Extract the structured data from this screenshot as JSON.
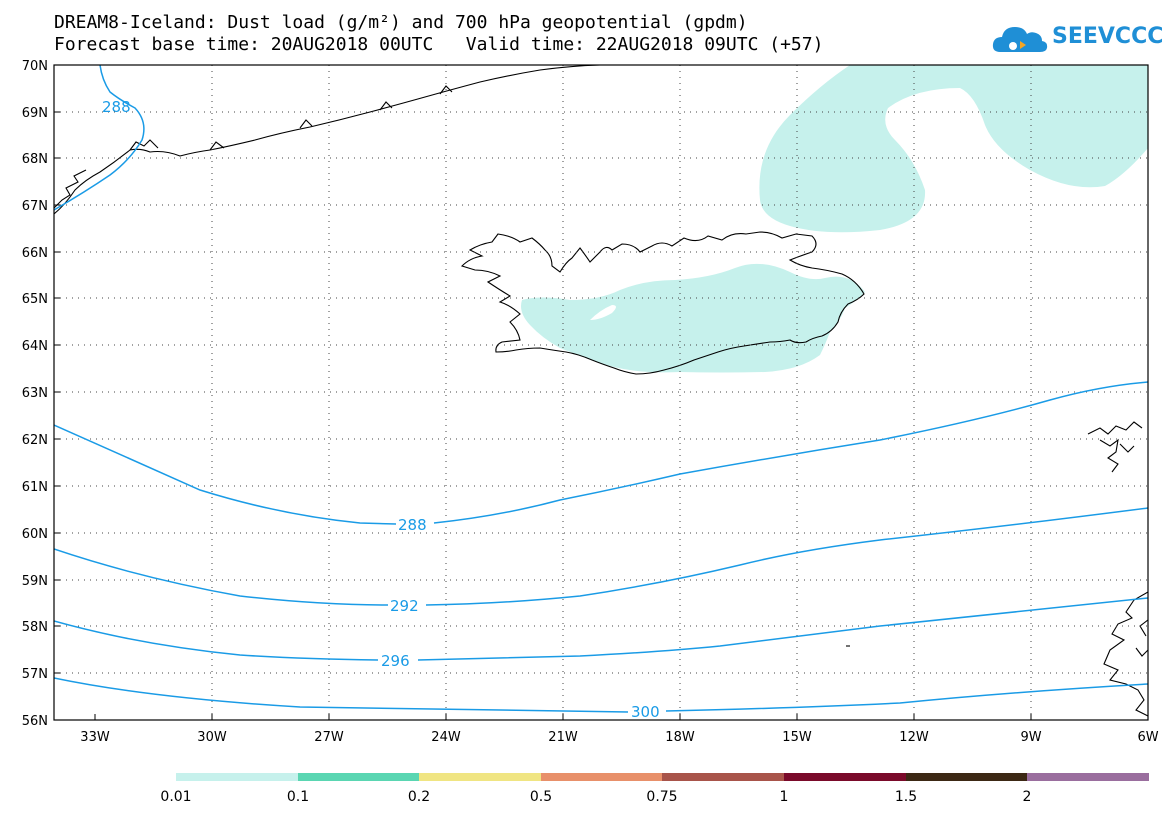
{
  "title": {
    "line1": "DREAM8-Iceland: Dust load (g/m²) and 700 hPa geopotential (gpdm)",
    "line2": "Forecast base time: 20AUG2018 00UTC   Valid time: 22AUG2018 09UTC (+57)"
  },
  "logo": {
    "text": "SEEVCCC",
    "icon": "cloud-icon",
    "color": "#1f8fd6"
  },
  "axes": {
    "lat_labels": [
      "70N",
      "69N",
      "68N",
      "67N",
      "66N",
      "65N",
      "64N",
      "63N",
      "62N",
      "61N",
      "60N",
      "59N",
      "58N",
      "57N",
      "56N"
    ],
    "lon_labels": [
      "33W",
      "30W",
      "27W",
      "24W",
      "21W",
      "18W",
      "15W",
      "12W",
      "9W",
      "6W"
    ]
  },
  "contours": {
    "color": "#1a9be6",
    "labels": [
      "288",
      "288",
      "292",
      "296",
      "300"
    ]
  },
  "dust_color": "#c6f1ec",
  "land_outline_color": "#000000",
  "colorbar": {
    "colors": [
      "#c6f1ec",
      "#5ad6b2",
      "#f0e582",
      "#e8906a",
      "#a8544a",
      "#7a0a2a",
      "#3c2814",
      "#9a6e9e"
    ],
    "labels": [
      "0.01",
      "0.1",
      "0.2",
      "0.5",
      "0.75",
      "1",
      "1.5",
      "2"
    ]
  }
}
